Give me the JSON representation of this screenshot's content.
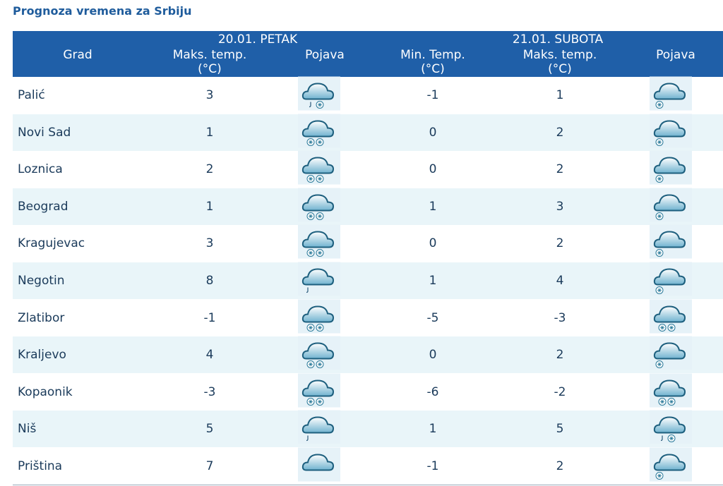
{
  "header": {
    "title": "Prognoza vremena za Srbiju"
  },
  "table": {
    "day1": "20.01. PETAK",
    "day2": "21.01. SUBOTA",
    "columns": [
      "Grad",
      "Maks. temp. (°C)",
      "Pojava",
      "Min. Temp. (°C)",
      "Maks. temp. (°C)",
      "Pojava"
    ],
    "rows": [
      [
        "Palić",
        3,
        -1,
        1
      ],
      [
        "Novi Sad",
        1,
        0,
        2
      ],
      [
        "Loznica",
        2,
        0,
        2
      ],
      [
        "Beograd",
        1,
        1,
        3
      ],
      [
        "Kragujevac",
        3,
        0,
        2
      ],
      [
        "Negotin",
        8,
        1,
        4
      ],
      [
        "Zlatibor",
        -1,
        -5,
        -3
      ],
      [
        "Kraljevo",
        4,
        0,
        2
      ],
      [
        "Kopaonik",
        -3,
        -6,
        -2
      ],
      [
        "Niš",
        5,
        1,
        5
      ],
      [
        "Priština",
        7,
        -1,
        2
      ]
    ]
  }
}
